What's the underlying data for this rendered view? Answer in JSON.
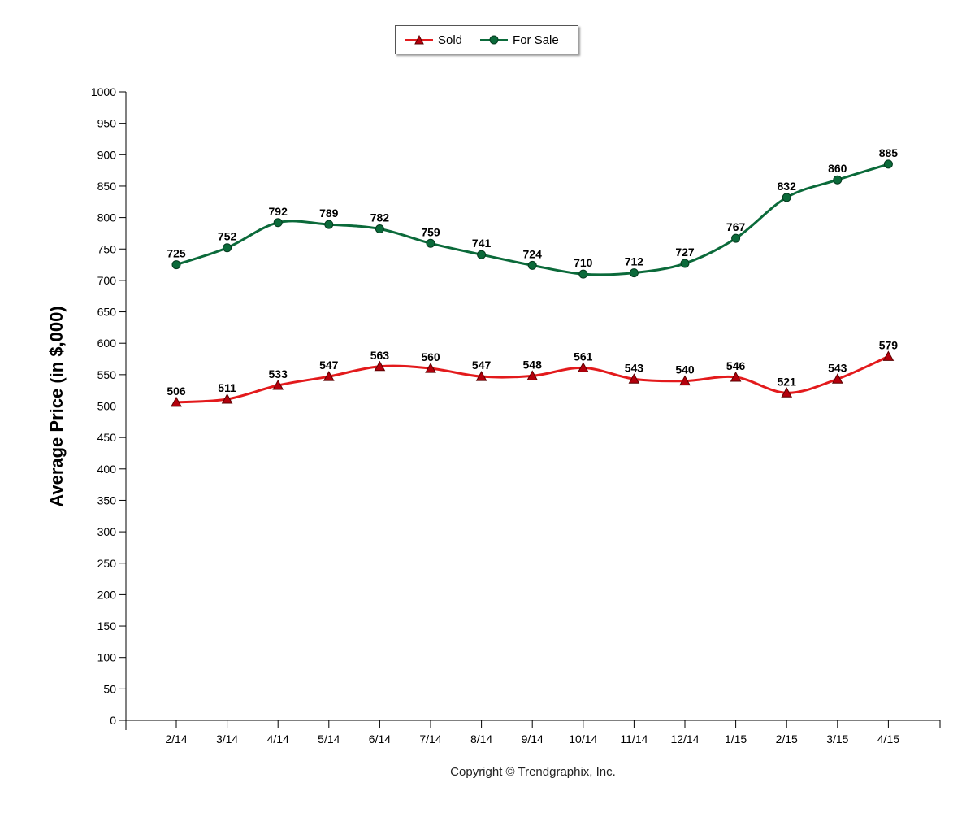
{
  "chart_data": {
    "type": "line",
    "categories": [
      "2/14",
      "3/14",
      "4/14",
      "5/14",
      "6/14",
      "7/14",
      "8/14",
      "9/14",
      "10/14",
      "11/14",
      "12/14",
      "1/15",
      "2/15",
      "3/15",
      "4/15"
    ],
    "series": [
      {
        "name": "Sold",
        "color": "#e31a1c",
        "marker": "triangle",
        "values": [
          506,
          511,
          533,
          547,
          563,
          560,
          547,
          548,
          561,
          543,
          540,
          546,
          521,
          543,
          579
        ]
      },
      {
        "name": "For Sale",
        "color": "#0b6a3a",
        "marker": "circle",
        "values": [
          725,
          752,
          792,
          789,
          782,
          759,
          741,
          724,
          710,
          712,
          727,
          767,
          832,
          860,
          885
        ]
      }
    ],
    "ylabel": "Average Price (in $,000)",
    "xlabel": "",
    "title": "",
    "ylim": [
      0,
      1000
    ],
    "ytick_step": 50,
    "grid": false,
    "legend": "top-center"
  },
  "footer": {
    "copyright": "Copyright © Trendgraphix, Inc."
  }
}
